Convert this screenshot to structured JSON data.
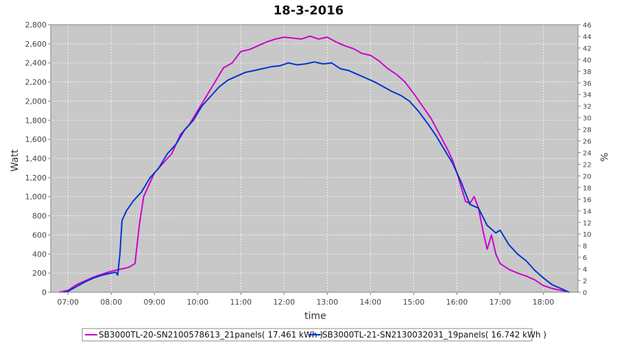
{
  "chart_data": {
    "type": "line",
    "title": "18-3-2016",
    "xlabel": "time",
    "ylabel": "Watt",
    "y2label": "%",
    "xlim": [
      6.6,
      18.8
    ],
    "ylim": [
      0,
      2800
    ],
    "y2lim": [
      0,
      46
    ],
    "grid": true,
    "legend_position": "bottom",
    "plot_background": "#c8c8c8",
    "x_ticks": [
      7,
      8,
      9,
      10,
      11,
      12,
      13,
      14,
      15,
      16,
      17,
      18
    ],
    "x_tick_labels": [
      "07:00",
      "08:00",
      "09:00",
      "10:00",
      "11:00",
      "12:00",
      "13:00",
      "14:00",
      "15:00",
      "16:00",
      "17:00",
      "18:00"
    ],
    "y_ticks": [
      0,
      200,
      400,
      600,
      800,
      1000,
      1200,
      1400,
      1600,
      1800,
      2000,
      2200,
      2400,
      2600,
      2800
    ],
    "y_tick_labels": [
      "0",
      "200",
      "400",
      "600",
      "800",
      "1,000",
      "1,200",
      "1,400",
      "1,600",
      "1,800",
      "2,000",
      "2,200",
      "2,400",
      "2,600",
      "2,800"
    ],
    "y2_ticks": [
      0,
      2,
      4,
      6,
      8,
      10,
      12,
      14,
      16,
      18,
      20,
      22,
      24,
      26,
      28,
      30,
      32,
      34,
      36,
      38,
      40,
      42,
      44,
      46
    ],
    "y2_tick_labels": [
      "0",
      "2",
      "4",
      "6",
      "8",
      "10",
      "12",
      "14",
      "16",
      "18",
      "20",
      "22",
      "24",
      "26",
      "28",
      "30",
      "32",
      "34",
      "36",
      "38",
      "40",
      "42",
      "44",
      "46"
    ],
    "series": [
      {
        "name": "SB3000TL-20-SN2100578613_21panels",
        "legend_label": "SB3000TL-20-SN2100578613_21panels( 17.461 kWh )",
        "color": "#cc00cc",
        "x": [
          6.8,
          7.0,
          7.2,
          7.4,
          7.6,
          7.8,
          8.0,
          8.2,
          8.4,
          8.55,
          8.65,
          8.75,
          8.9,
          9.0,
          9.2,
          9.4,
          9.6,
          9.8,
          10.0,
          10.2,
          10.4,
          10.6,
          10.8,
          11.0,
          11.2,
          11.4,
          11.6,
          11.8,
          12.0,
          12.2,
          12.4,
          12.6,
          12.8,
          13.0,
          13.2,
          13.4,
          13.6,
          13.8,
          14.0,
          14.2,
          14.4,
          14.6,
          14.8,
          15.0,
          15.2,
          15.4,
          15.6,
          15.8,
          15.9,
          16.0,
          16.2,
          16.3,
          16.4,
          16.5,
          16.6,
          16.7,
          16.8,
          16.9,
          17.0,
          17.2,
          17.4,
          17.6,
          17.8,
          18.0,
          18.2,
          18.4,
          18.6
        ],
        "values": [
          0,
          20,
          80,
          120,
          160,
          190,
          220,
          240,
          260,
          300,
          700,
          1000,
          1150,
          1250,
          1350,
          1450,
          1650,
          1750,
          1900,
          2050,
          2200,
          2350,
          2400,
          2520,
          2540,
          2580,
          2620,
          2650,
          2670,
          2660,
          2650,
          2680,
          2650,
          2670,
          2620,
          2580,
          2550,
          2500,
          2480,
          2420,
          2340,
          2280,
          2200,
          2080,
          1950,
          1820,
          1650,
          1480,
          1380,
          1250,
          950,
          930,
          1000,
          880,
          650,
          450,
          600,
          400,
          300,
          240,
          200,
          170,
          130,
          70,
          40,
          20,
          0
        ]
      },
      {
        "name": "SB3000TL-21-SN2130032031_19panels",
        "legend_label": "SB3000TL-21-SN2130032031_19panels( 16.742 kWh )",
        "color": "#0033cc",
        "x": [
          6.9,
          7.0,
          7.2,
          7.4,
          7.6,
          7.8,
          8.0,
          8.1,
          8.15,
          8.2,
          8.25,
          8.35,
          8.5,
          8.7,
          8.9,
          9.1,
          9.3,
          9.5,
          9.7,
          9.9,
          10.1,
          10.3,
          10.5,
          10.7,
          10.9,
          11.1,
          11.3,
          11.5,
          11.7,
          11.9,
          12.1,
          12.3,
          12.5,
          12.7,
          12.9,
          13.1,
          13.3,
          13.5,
          13.7,
          13.9,
          14.1,
          14.3,
          14.5,
          14.7,
          14.9,
          15.1,
          15.3,
          15.5,
          15.7,
          15.9,
          16.1,
          16.3,
          16.5,
          16.7,
          16.9,
          17.0,
          17.2,
          17.4,
          17.6,
          17.8,
          18.0,
          18.2,
          18.4,
          18.6
        ],
        "values": [
          0,
          10,
          60,
          110,
          150,
          180,
          200,
          210,
          180,
          400,
          750,
          850,
          950,
          1050,
          1200,
          1300,
          1450,
          1550,
          1700,
          1800,
          1950,
          2050,
          2150,
          2220,
          2260,
          2300,
          2320,
          2340,
          2360,
          2370,
          2400,
          2380,
          2390,
          2410,
          2390,
          2400,
          2340,
          2320,
          2280,
          2240,
          2200,
          2150,
          2100,
          2060,
          2000,
          1900,
          1780,
          1650,
          1500,
          1350,
          1150,
          920,
          880,
          700,
          620,
          650,
          500,
          400,
          330,
          230,
          150,
          80,
          40,
          0
        ]
      }
    ]
  }
}
